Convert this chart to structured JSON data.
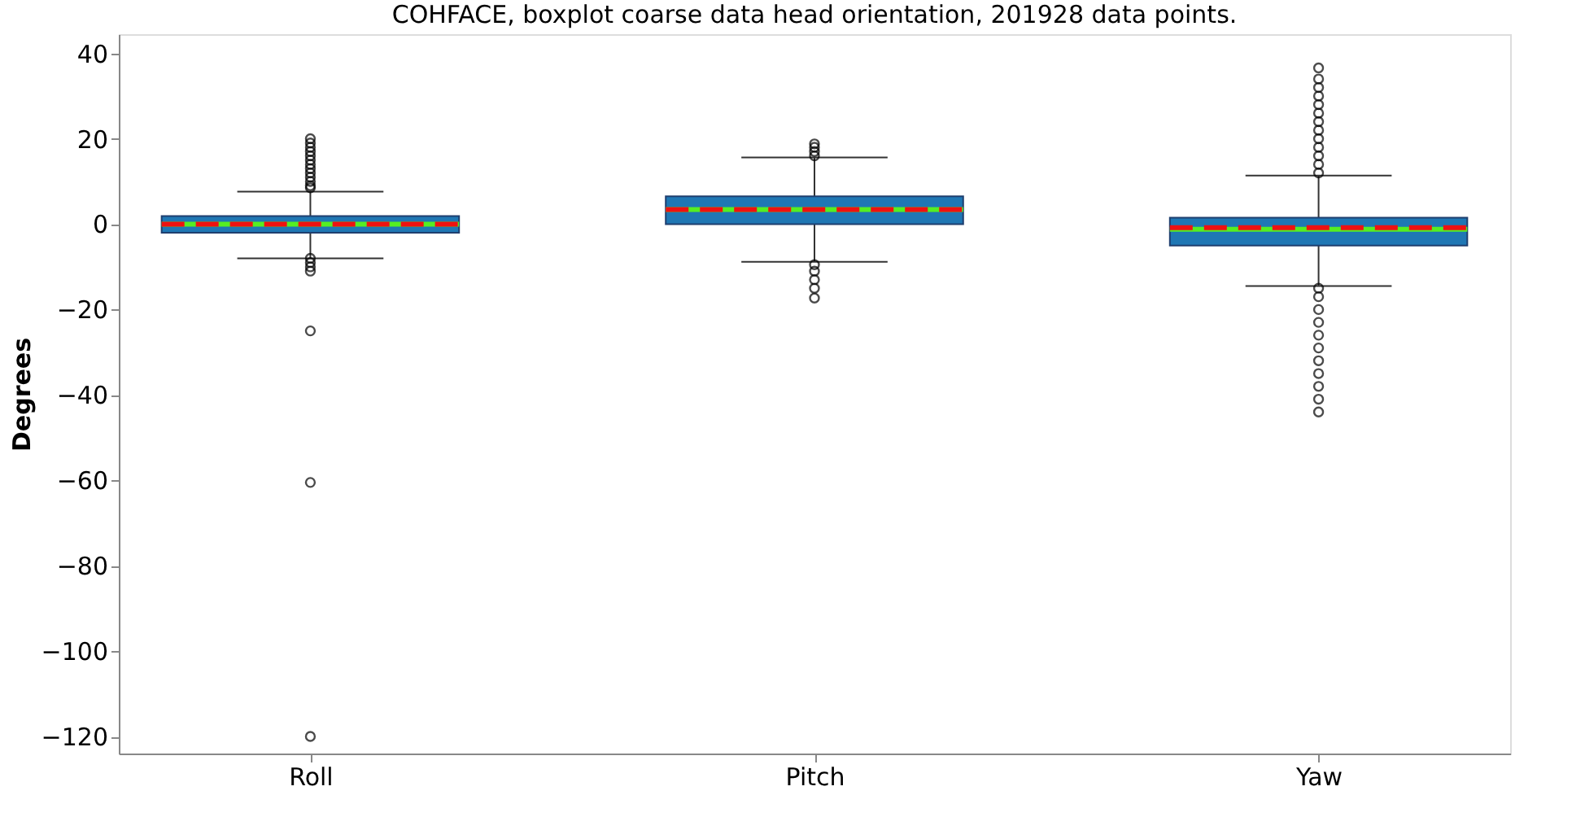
{
  "chart_data": {
    "type": "box",
    "title": "COHFACE, boxplot coarse data head orientation, 201928 data points.",
    "ylabel": "Degrees",
    "categories": [
      "Roll",
      "Pitch",
      "Yaw"
    ],
    "boxes": [
      {
        "low": -8,
        "q1": -2,
        "median": 0,
        "q3": 1.9,
        "high": 7.6,
        "mean": 0,
        "outliers": [
          8.5,
          9,
          10,
          11,
          12,
          13,
          14,
          15,
          16,
          17,
          18,
          19,
          20,
          -8,
          -9,
          -10,
          -11,
          -25,
          -60.5,
          -120
        ]
      },
      {
        "low": -8.8,
        "q1": 0,
        "median": 3.4,
        "q3": 6.5,
        "high": 15.6,
        "mean": 3.4,
        "outliers": [
          16,
          17,
          18,
          18.8,
          -9.5,
          -11,
          -13,
          -15,
          -17.3
        ]
      },
      {
        "low": -14.5,
        "q1": -5,
        "median": -0.8,
        "q3": 1.5,
        "high": 11.4,
        "mean": -1.2,
        "outliers": [
          12,
          14,
          16,
          18,
          20,
          22,
          24,
          26,
          28,
          30,
          32,
          34,
          36.6,
          -15,
          -17,
          -20,
          -23,
          -26,
          -29,
          -32,
          -35,
          -38,
          -41,
          -44
        ]
      }
    ],
    "color": "#1f77b4",
    "ylim": [
      -124,
      44.5
    ],
    "yticks": [
      40,
      20,
      0,
      -20,
      -40,
      -60,
      -80,
      -100,
      -120
    ],
    "grid": false
  }
}
